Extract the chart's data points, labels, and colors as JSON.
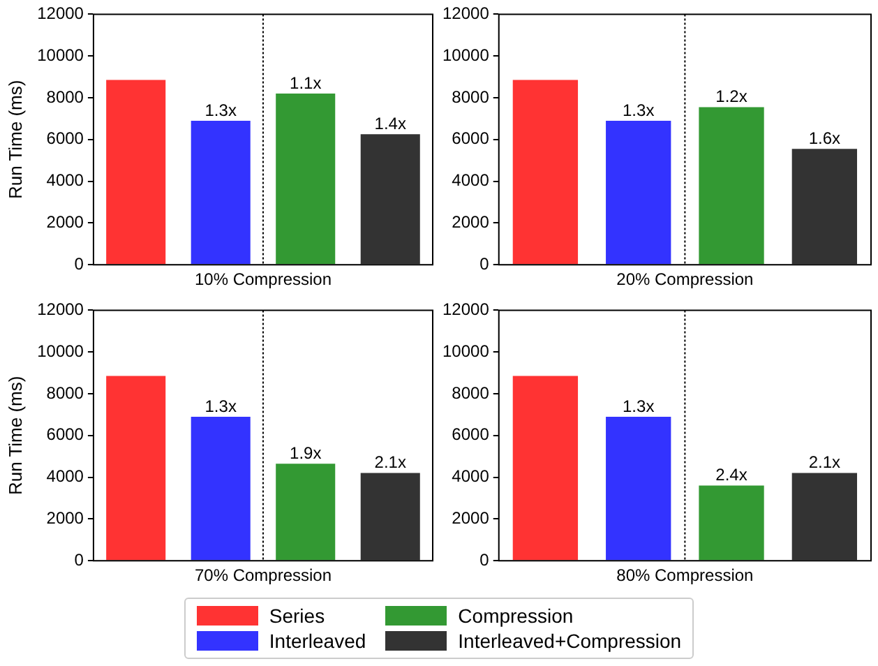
{
  "chart_data": [
    {
      "type": "bar",
      "xlabel": "10% Compression",
      "ylabel": "Run Time (ms)",
      "categories": [
        null,
        null,
        null,
        null
      ],
      "ylim": [
        0,
        12000
      ],
      "yticks": [
        0,
        2000,
        4000,
        6000,
        8000,
        10000,
        12000
      ],
      "annotations": [
        {
          "text": "1.3x",
          "y": 6900
        },
        {
          "text": "1.1x",
          "y": 8200
        },
        {
          "text": "1.4x",
          "y": 6250
        }
      ],
      "series": [
        {
          "color": "#ff3333",
          "values": [
            8850,
            null,
            null,
            null
          ]
        },
        {
          "color": "#3333ff",
          "values": [
            null,
            6900,
            null,
            null
          ]
        },
        {
          "color": "#339933",
          "values": [
            null,
            null,
            8200,
            null
          ]
        },
        {
          "color": "#333333",
          "values": [
            null,
            null,
            null,
            6250
          ]
        }
      ]
    },
    {
      "type": "bar",
      "xlabel": "20% Compression",
      "categories": [
        null,
        null,
        null,
        null
      ],
      "ylim": [
        0,
        12000
      ],
      "yticks": [
        0,
        2000,
        4000,
        6000,
        8000,
        10000,
        12000
      ],
      "annotations": [
        {
          "text": "1.3x",
          "y": 6900
        },
        {
          "text": "1.2x",
          "y": 7550
        },
        {
          "text": "1.6x",
          "y": 5550
        }
      ],
      "series": [
        {
          "color": "#ff3333",
          "values": [
            8850,
            null,
            null,
            null
          ]
        },
        {
          "color": "#3333ff",
          "values": [
            null,
            6900,
            null,
            null
          ]
        },
        {
          "color": "#339933",
          "values": [
            null,
            null,
            7550,
            null
          ]
        },
        {
          "color": "#333333",
          "values": [
            null,
            null,
            null,
            5550
          ]
        }
      ]
    },
    {
      "type": "bar",
      "xlabel": "70% Compression",
      "ylabel": "Run Time (ms)",
      "categories": [
        null,
        null,
        null,
        null
      ],
      "ylim": [
        0,
        12000
      ],
      "yticks": [
        0,
        2000,
        4000,
        6000,
        8000,
        10000,
        12000
      ],
      "annotations": [
        {
          "text": "1.3x",
          "y": 6900
        },
        {
          "text": "1.9x",
          "y": 4650
        },
        {
          "text": "2.1x",
          "y": 4200
        }
      ],
      "series": [
        {
          "color": "#ff3333",
          "values": [
            8850,
            null,
            null,
            null
          ]
        },
        {
          "color": "#3333ff",
          "values": [
            null,
            6900,
            null,
            null
          ]
        },
        {
          "color": "#339933",
          "values": [
            null,
            null,
            4650,
            null
          ]
        },
        {
          "color": "#333333",
          "values": [
            null,
            null,
            null,
            4200
          ]
        }
      ]
    },
    {
      "type": "bar",
      "xlabel": "80% Compression",
      "categories": [
        null,
        null,
        null,
        null
      ],
      "ylim": [
        0,
        12000
      ],
      "yticks": [
        0,
        2000,
        4000,
        6000,
        8000,
        10000,
        12000
      ],
      "legend": "bottom",
      "annotations": [
        {
          "text": "1.3x",
          "y": 6900
        },
        {
          "text": "2.4x",
          "y": 3600
        },
        {
          "text": "2.1x",
          "y": 4200
        }
      ],
      "series": [
        {
          "name": "Series",
          "color": "#ff3333",
          "values": [
            8850,
            null,
            null,
            null
          ]
        },
        {
          "name": "Interleaved",
          "color": "#3333ff",
          "values": [
            null,
            6900,
            null,
            null
          ]
        },
        {
          "name": "Compression",
          "color": "#339933",
          "values": [
            null,
            null,
            3600,
            null
          ]
        },
        {
          "name": "Interleaved+Compression",
          "color": "#333333",
          "values": [
            null,
            null,
            null,
            4200
          ]
        }
      ]
    }
  ]
}
